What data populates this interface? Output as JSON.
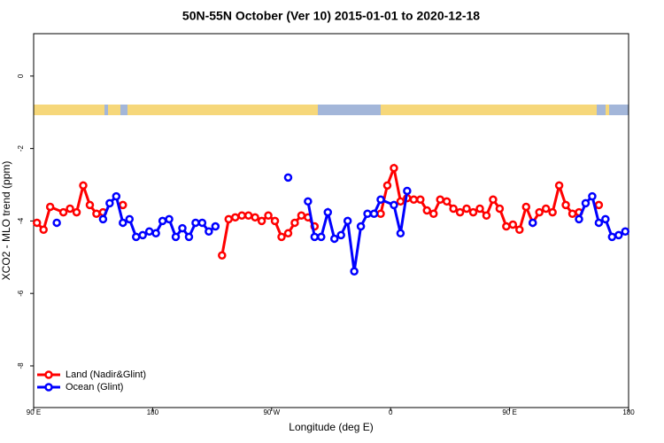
{
  "chart_data": {
    "type": "line",
    "title": "50N-55N October (Ver 10)   2015-01-01 to 2020-12-18",
    "xlabel": "Longitude (deg E)",
    "ylabel": "XCO2 - MLO trend (ppm)",
    "xlim": [
      90,
      540
    ],
    "xticks": [
      {
        "value": 90,
        "label": "90 E"
      },
      180,
      {
        "value": 270,
        "label": "90 W"
      },
      {
        "value": 360,
        "label": "0"
      },
      {
        "value": 450,
        "label": "90 E"
      },
      {
        "value": 540,
        "label": "180"
      }
    ],
    "ylim": [
      -9.15,
      1.17
    ],
    "yticks": [
      -8,
      -6,
      -4,
      -2,
      0
    ],
    "legend": "lower left",
    "series": [
      {
        "name": "Land (Nadir&Glint)",
        "color": "#ff0000",
        "x": [
          92.5,
          97.5,
          102.5,
          112.5,
          117.5,
          122.5,
          127.5,
          132.5,
          137.5,
          142.5,
          147.5,
          157.5,
          195,
          232.5,
          237.5,
          242.5,
          247.5,
          252.5,
          257.5,
          262.5,
          267.5,
          272.5,
          277.5,
          282.5,
          287.5,
          292.5,
          297.5,
          302.5,
          330,
          352.5,
          357.5,
          362.5,
          367.5,
          372.5,
          377.5,
          382.5,
          387.5,
          392.5,
          397.5,
          402.5,
          407.5,
          412.5,
          417.5,
          422.5,
          427.5,
          432.5,
          437.5,
          442.5,
          447.5,
          452.5,
          457.5,
          462.5,
          467.5,
          472.5,
          477.5,
          482.5,
          487.5,
          492.5,
          497.5,
          502.5,
          510,
          517.5
        ],
        "values": [
          -4.05,
          -4.24,
          -3.61,
          -3.76,
          -3.66,
          -3.76,
          -3.02,
          -3.56,
          -3.8,
          -3.76,
          null,
          -3.56,
          null,
          -4.95,
          -3.95,
          -3.9,
          -3.85,
          -3.85,
          -3.9,
          -4.0,
          -3.85,
          -4.0,
          -4.44,
          -4.34,
          -4.05,
          -3.85,
          -3.9,
          -4.15,
          null,
          -3.8,
          -3.02,
          -2.54,
          -3.46,
          -3.37,
          -3.41,
          -3.41,
          -3.71,
          -3.8,
          -3.41,
          -3.46,
          -3.66,
          -3.76,
          -3.66,
          -3.76,
          -3.66,
          -3.85,
          -3.41,
          -3.66,
          -4.15,
          -4.1,
          -4.24,
          -3.61,
          -4.05,
          -3.76,
          -3.66,
          -3.76,
          -3.02,
          -3.56,
          -3.8,
          -3.76,
          null,
          -3.56
        ]
      },
      {
        "name": "Ocean (Glint)",
        "color": "#0000ff",
        "x": [
          107.5,
          125,
          142.5,
          147.5,
          152.5,
          157.5,
          162.5,
          167.5,
          172.5,
          177.5,
          182.5,
          187.5,
          192.5,
          197.5,
          202.5,
          207.5,
          212.5,
          217.5,
          222.5,
          227.5,
          250,
          282.5,
          290,
          297.5,
          302.5,
          307.5,
          312.5,
          317.5,
          322.5,
          327.5,
          332.5,
          337.5,
          342.5,
          347.5,
          352.5,
          362.5,
          367.5,
          372.5,
          420,
          467.5,
          480,
          502.5,
          507.5,
          512.5,
          517.5,
          522.5,
          527.5,
          532.5,
          537.5
        ],
        "values": [
          -4.05,
          null,
          -3.95,
          -3.51,
          -3.32,
          -4.05,
          -3.95,
          -4.44,
          -4.39,
          -4.29,
          -4.34,
          -4.0,
          -3.95,
          -4.44,
          -4.2,
          -4.44,
          -4.05,
          -4.05,
          -4.29,
          -4.15,
          null,
          -2.8,
          null,
          -3.46,
          -4.44,
          -4.44,
          -3.76,
          -4.49,
          -4.39,
          -4.0,
          -5.39,
          -4.15,
          -3.8,
          -3.8,
          -3.41,
          -3.56,
          -4.34,
          -3.17,
          null,
          -4.05,
          null,
          -3.95,
          -3.51,
          -3.32,
          -4.05,
          -3.95,
          -4.44,
          -4.39,
          -4.29
        ]
      }
    ]
  }
}
